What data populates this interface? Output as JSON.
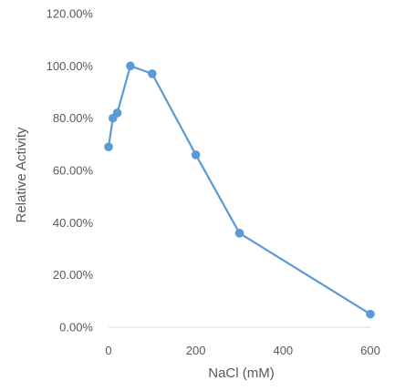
{
  "chart_data": {
    "type": "line",
    "title": "",
    "xlabel": "NaCl (mM)",
    "ylabel": "Relative Activity",
    "xlim": [
      0,
      600
    ],
    "ylim": [
      0,
      1.2
    ],
    "x_ticks": [
      0,
      200,
      400,
      600
    ],
    "x_tick_labels": [
      "0",
      "200",
      "400",
      "600"
    ],
    "y_ticks": [
      0,
      0.2,
      0.4,
      0.6,
      0.8,
      1.0,
      1.2
    ],
    "y_tick_labels": [
      "0.00%",
      "20.00%",
      "40.00%",
      "60.00%",
      "80.00%",
      "100.00%",
      "120.00%"
    ],
    "grid": false,
    "legend": "none",
    "series": [
      {
        "color": "#5b9bd5",
        "x": [
          0,
          10,
          20,
          50,
          100,
          200,
          300,
          600
        ],
        "y": [
          0.69,
          0.8,
          0.82,
          1.0,
          0.97,
          0.66,
          0.36,
          0.05
        ]
      }
    ]
  }
}
